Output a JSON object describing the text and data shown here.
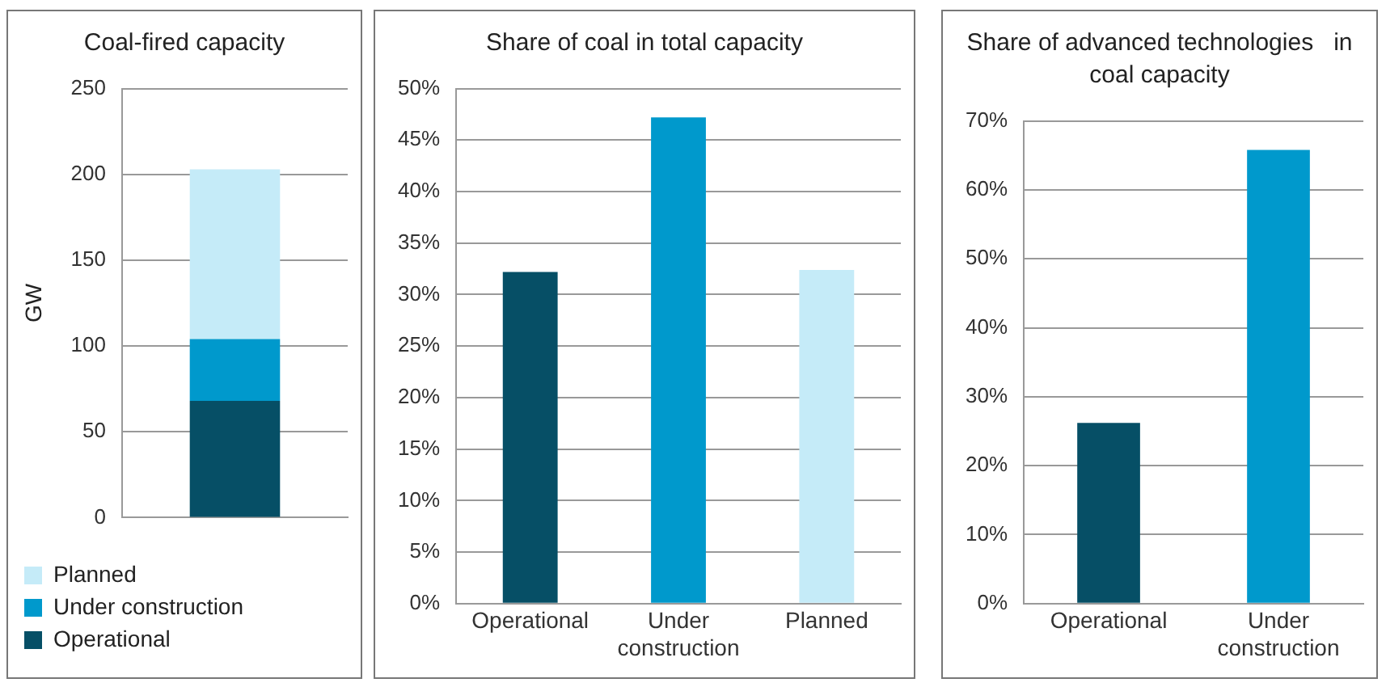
{
  "chart_data": [
    {
      "type": "bar",
      "title": "Coal-fired capacity",
      "ylabel": "GW",
      "categories": [
        null
      ],
      "stacked": true,
      "series": [
        {
          "name": "Operational",
          "color": "#064f66",
          "values": [
            68
          ]
        },
        {
          "name": "Under construction",
          "color": "#0099cc",
          "values": [
            36
          ]
        },
        {
          "name": "Planned",
          "color": "#c5ebf8",
          "values": [
            99
          ]
        }
      ],
      "ylim": [
        0,
        250
      ],
      "yticks": [
        0,
        50,
        100,
        150,
        200,
        250
      ],
      "grid": "y",
      "legend": "bottom left"
    },
    {
      "type": "bar",
      "title": "Share of coal in total capacity",
      "categories": [
        "Operational",
        "Under construction",
        "Planned"
      ],
      "values": [
        32.2,
        47.2,
        32.4
      ],
      "colors": [
        "#064f66",
        "#0099cc",
        "#c5ebf8"
      ],
      "ylim": [
        0,
        50
      ],
      "yticks": [
        {
          "value": 0,
          "label": "0%"
        },
        {
          "value": 5,
          "label": "5%"
        },
        {
          "value": 10,
          "label": "10%"
        },
        {
          "value": 15,
          "label": "15%"
        },
        {
          "value": 20,
          "label": "20%"
        },
        {
          "value": 25,
          "label": "25%"
        },
        {
          "value": 30,
          "label": "30%"
        },
        {
          "value": 35,
          "label": "35%"
        },
        {
          "value": 40,
          "label": "40%"
        },
        {
          "value": 45,
          "label": "45%"
        },
        {
          "value": 50,
          "label": "50%"
        }
      ],
      "grid": "y"
    },
    {
      "type": "bar",
      "title": "Share of advanced technologies   in coal capacity",
      "categories": [
        "Operational",
        "Under construction"
      ],
      "values": [
        26.2,
        65.8
      ],
      "colors": [
        "#064f66",
        "#0099cc"
      ],
      "ylim": [
        0,
        70
      ],
      "yticks": [
        {
          "value": 0,
          "label": "0%"
        },
        {
          "value": 10,
          "label": "10%"
        },
        {
          "value": 20,
          "label": "20%"
        },
        {
          "value": 30,
          "label": "30%"
        },
        {
          "value": 40,
          "label": "40%"
        },
        {
          "value": 50,
          "label": "50%"
        },
        {
          "value": 60,
          "label": "60%"
        },
        {
          "value": 70,
          "label": "70%"
        }
      ],
      "grid": "y"
    }
  ]
}
